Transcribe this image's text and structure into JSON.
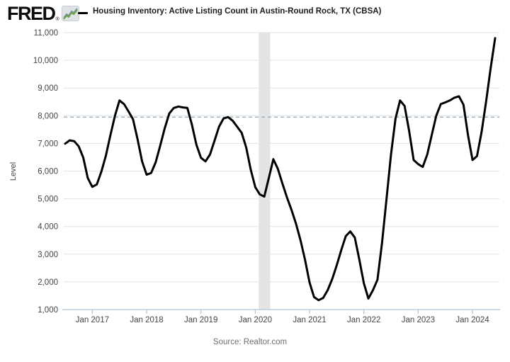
{
  "header": {
    "logo_text": "FRED",
    "logo_reg": "®",
    "title": "Housing Inventory: Active Listing Count in Austin-Round Rock, TX (CBSA)"
  },
  "footer": {
    "source": "Source: Realtor.com"
  },
  "colors": {
    "line": "#000000",
    "grid": "#e3e3e3",
    "axis": "#aec6d8",
    "reference_line": "#8ca6ba",
    "recession_band": "#e4e4e4",
    "tick_label": "#444444",
    "source_text": "#6e6e6e",
    "logo_icon_green": "#6fa043",
    "logo_icon_slate": "#7d93a3"
  },
  "chart_data": {
    "type": "line",
    "title": "Housing Inventory: Active Listing Count in Austin-Round Rock, TX (CBSA)",
    "ylabel": "Level",
    "xlabel": "",
    "frequency": "monthly",
    "grid": "horizontal",
    "legend_position": "top",
    "ylim": [
      1000,
      11000
    ],
    "y_tick_values": [
      1000,
      2000,
      3000,
      4000,
      5000,
      6000,
      7000,
      8000,
      9000,
      10000,
      11000
    ],
    "y_tick_labels": [
      "1,000",
      "2,000",
      "3,000",
      "4,000",
      "5,000",
      "6,000",
      "7,000",
      "8,000",
      "9,000",
      "10,000",
      "11,000"
    ],
    "x_tick_labels": [
      "Jan 2017",
      "Jan 2018",
      "Jan 2019",
      "Jan 2020",
      "Jan 2021",
      "Jan 2022",
      "Jan 2023",
      "Jan 2024"
    ],
    "x_tick_month_indices": [
      6,
      18,
      30,
      42,
      54,
      66,
      78,
      90
    ],
    "reference_line": {
      "value": 7950,
      "style": "dashed"
    },
    "recession_band": {
      "start": "2020-02",
      "end": "2020-04",
      "start_month_index": 43,
      "end_month_index": 45
    },
    "series": [
      {
        "name": "Housing Inventory: Active Listing Count in Austin-Round Rock, TX (CBSA)",
        "color": "#000000",
        "start_date": "2016-07",
        "end_date": "2024-06",
        "dates": [
          "2016-07",
          "2016-08",
          "2016-09",
          "2016-10",
          "2016-11",
          "2016-12",
          "2017-01",
          "2017-02",
          "2017-03",
          "2017-04",
          "2017-05",
          "2017-06",
          "2017-07",
          "2017-08",
          "2017-09",
          "2017-10",
          "2017-11",
          "2017-12",
          "2018-01",
          "2018-02",
          "2018-03",
          "2018-04",
          "2018-05",
          "2018-06",
          "2018-07",
          "2018-08",
          "2018-09",
          "2018-10",
          "2018-11",
          "2018-12",
          "2019-01",
          "2019-02",
          "2019-03",
          "2019-04",
          "2019-05",
          "2019-06",
          "2019-07",
          "2019-08",
          "2019-09",
          "2019-10",
          "2019-11",
          "2019-12",
          "2020-01",
          "2020-02",
          "2020-03",
          "2020-04",
          "2020-05",
          "2020-06",
          "2020-07",
          "2020-08",
          "2020-09",
          "2020-10",
          "2020-11",
          "2020-12",
          "2021-01",
          "2021-02",
          "2021-03",
          "2021-04",
          "2021-05",
          "2021-06",
          "2021-07",
          "2021-08",
          "2021-09",
          "2021-10",
          "2021-11",
          "2021-12",
          "2022-01",
          "2022-02",
          "2022-03",
          "2022-04",
          "2022-05",
          "2022-06",
          "2022-07",
          "2022-08",
          "2022-09",
          "2022-10",
          "2022-11",
          "2022-12",
          "2023-01",
          "2023-02",
          "2023-03",
          "2023-04",
          "2023-05",
          "2023-06",
          "2023-07",
          "2023-08",
          "2023-09",
          "2023-10",
          "2023-11",
          "2023-12",
          "2024-01",
          "2024-02",
          "2024-03",
          "2024-04",
          "2024-05",
          "2024-06"
        ],
        "values": [
          6990,
          7110,
          7080,
          6890,
          6480,
          5750,
          5430,
          5520,
          5980,
          6560,
          7300,
          8000,
          8550,
          8420,
          8150,
          7870,
          7150,
          6350,
          5870,
          5930,
          6320,
          6920,
          7550,
          8080,
          8280,
          8330,
          8300,
          8280,
          7680,
          6950,
          6480,
          6350,
          6600,
          7100,
          7600,
          7900,
          7950,
          7820,
          7600,
          7380,
          6850,
          6050,
          5420,
          5160,
          5080,
          5750,
          6430,
          6080,
          5550,
          5050,
          4600,
          4100,
          3500,
          2800,
          1980,
          1450,
          1340,
          1420,
          1700,
          2100,
          2600,
          3150,
          3650,
          3820,
          3600,
          2800,
          1950,
          1400,
          1700,
          2080,
          3400,
          5000,
          6600,
          7900,
          8550,
          8350,
          7450,
          6400,
          6250,
          6150,
          6600,
          7300,
          8000,
          8420,
          8480,
          8550,
          8650,
          8700,
          8400,
          7300,
          6400,
          6540,
          7400,
          8500,
          9700,
          10800
        ]
      }
    ]
  }
}
